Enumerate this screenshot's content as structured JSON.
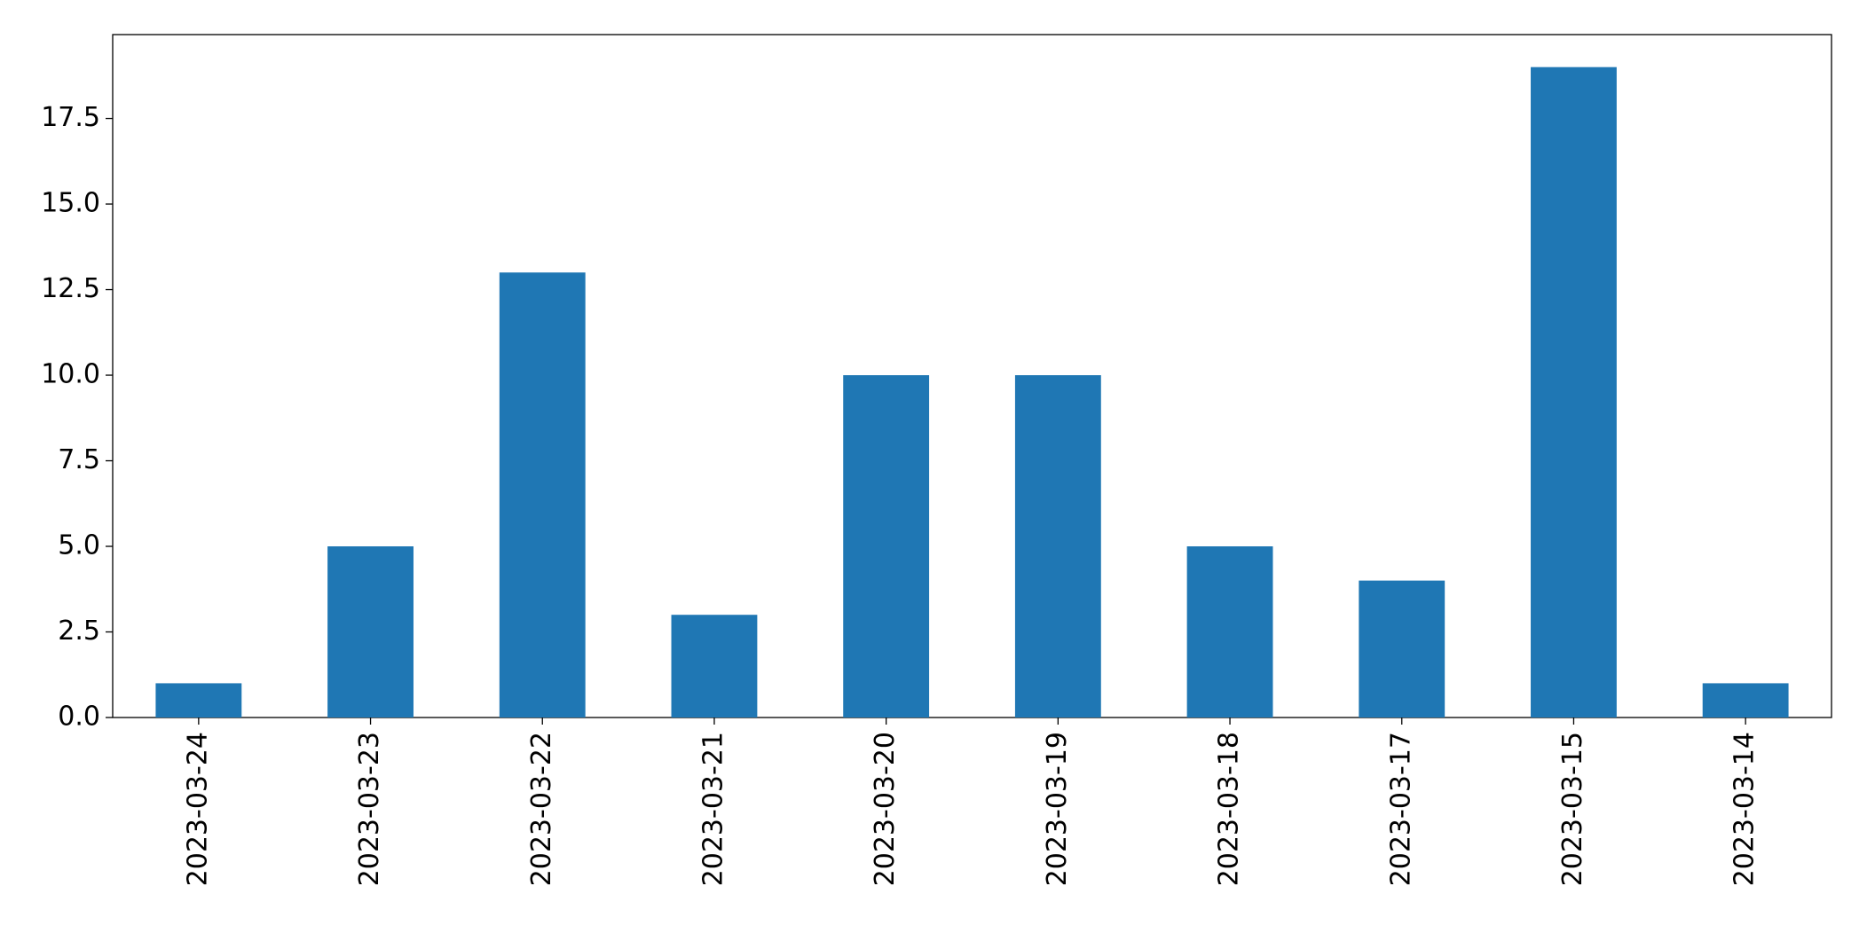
{
  "chart_data": {
    "type": "bar",
    "categories": [
      "2023-03-24",
      "2023-03-23",
      "2023-03-22",
      "2023-03-21",
      "2023-03-20",
      "2023-03-19",
      "2023-03-18",
      "2023-03-17",
      "2023-03-15",
      "2023-03-14"
    ],
    "values": [
      1,
      5,
      13,
      3,
      10,
      10,
      5,
      4,
      19,
      1
    ],
    "color": "#1f77b4",
    "ylim": [
      0,
      19.95
    ],
    "yticks": [
      {
        "value": 0,
        "label": "0.0"
      },
      2.5,
      {
        "value": 5,
        "label": "5.0"
      },
      7.5,
      {
        "value": 10,
        "label": "10.0"
      },
      12.5,
      {
        "value": 15,
        "label": "15.0"
      },
      17.5
    ],
    "grid": false
  }
}
